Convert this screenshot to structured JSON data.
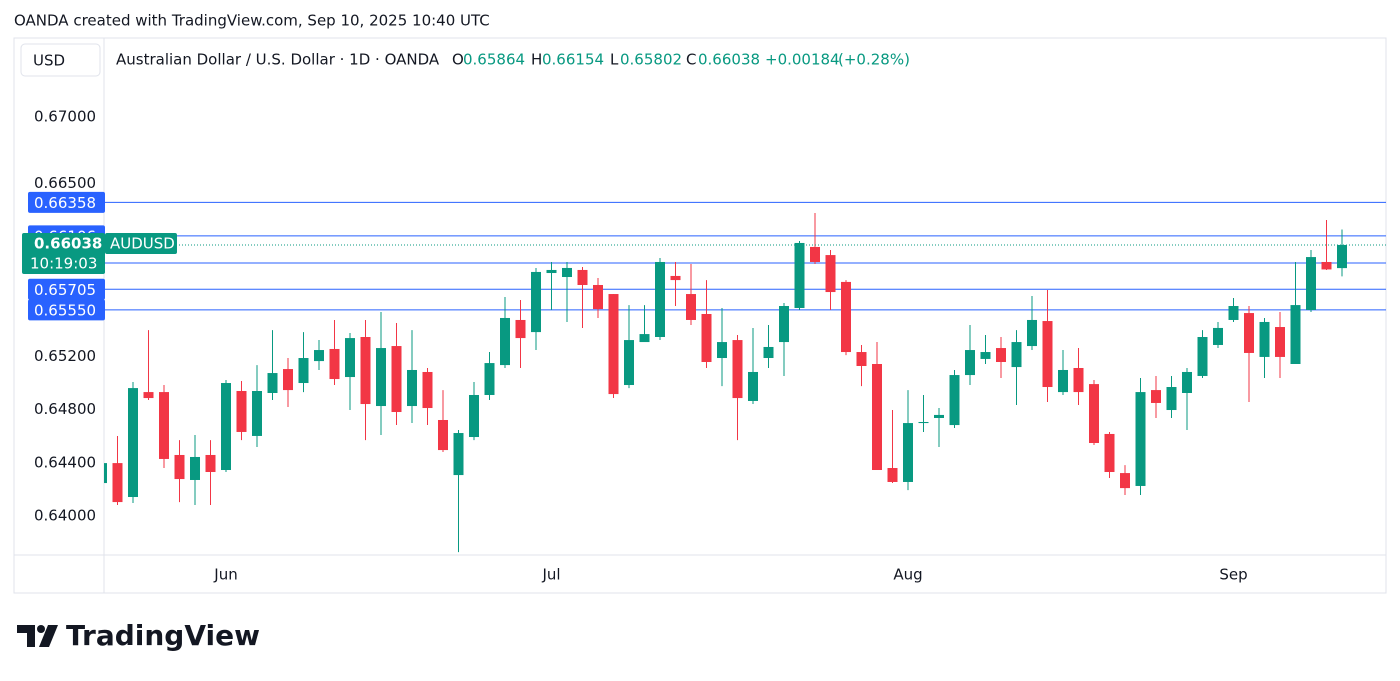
{
  "watermark": "OANDA created with TradingView.com, Sep 10, 2025 10:40 UTC",
  "logo": "TradingView",
  "chart_data": {
    "type": "candlestick",
    "currency": "USD",
    "title": "Australian Dollar / U.S. Dollar · 1D · OANDA",
    "ohlc_labels": [
      "O",
      "H",
      "L",
      "C"
    ],
    "change": "+0.00184",
    "change_pct": "(+0.28%)",
    "symbol": "AUDUSD",
    "countdown": "10:19:03",
    "up_color": "#089981",
    "down_color": "#f23645",
    "categories": [
      null,
      null,
      null,
      null,
      null,
      null,
      null,
      null,
      "Jun",
      null,
      null,
      null,
      null,
      null,
      null,
      null,
      null,
      null,
      null,
      null,
      null,
      null,
      null,
      null,
      null,
      null,
      null,
      null,
      null,
      "Jul",
      null,
      null,
      null,
      null,
      null,
      null,
      null,
      null,
      null,
      null,
      null,
      null,
      null,
      null,
      null,
      null,
      null,
      null,
      null,
      null,
      null,
      null,
      "Aug",
      null,
      null,
      null,
      null,
      null,
      null,
      null,
      null,
      null,
      null,
      null,
      null,
      null,
      null,
      null,
      null,
      null,
      null,
      null,
      null,
      "Sep",
      null,
      null,
      null,
      null,
      null,
      null,
      null
    ],
    "open": [
      0.64248,
      0.64398,
      0.64143,
      0.64932,
      0.64932,
      0.64459,
      0.64271,
      0.64459,
      0.64346,
      0.6494,
      0.64602,
      0.64925,
      0.65105,
      0.65,
      0.65165,
      0.65256,
      0.65045,
      0.65346,
      0.64827,
      0.65278,
      0.64827,
      0.65083,
      0.64722,
      0.64308,
      0.64594,
      0.6491,
      0.65135,
      0.65474,
      0.65383,
      0.65827,
      0.65797,
      0.6585,
      0.65737,
      0.65669,
      0.64985,
      0.65308,
      0.65346,
      0.65805,
      0.65669,
      0.65519,
      0.65188,
      0.65323,
      0.64865,
      0.65188,
      0.65308,
      0.65564,
      0.66023,
      0.65962,
      0.6576,
      0.65233,
      0.65143,
      0.64361,
      0.64256,
      0.64699,
      0.64737,
      0.64684,
      0.6506,
      0.65181,
      0.65263,
      0.6512,
      0.65278,
      0.65466,
      0.64932,
      0.65113,
      0.64992,
      0.64617,
      0.64323,
      0.64226,
      0.64947,
      0.64797,
      0.64925,
      0.65053,
      0.65286,
      0.65474,
      0.65526,
      0.65196,
      0.65421,
      0.65143,
      0.65549,
      0.6591,
      0.65864
    ],
    "high": [
      0.6442,
      0.64602,
      0.65008,
      0.65398,
      0.64985,
      0.64571,
      0.64609,
      0.64571,
      0.65023,
      0.65015,
      0.65135,
      0.65398,
      0.65188,
      0.65383,
      0.65323,
      0.65474,
      0.65376,
      0.65474,
      0.65534,
      0.65451,
      0.65398,
      0.65113,
      0.64947,
      0.64647,
      0.65008,
      0.65233,
      0.65647,
      0.65624,
      0.65865,
      0.6591,
      0.6591,
      0.65872,
      0.6579,
      0.65669,
      0.65586,
      0.65586,
      0.6594,
      0.6591,
      0.65895,
      0.65774,
      0.65564,
      0.65361,
      0.65414,
      0.65436,
      0.65602,
      0.66068,
      0.66278,
      0.66,
      0.65774,
      0.65286,
      0.65308,
      0.64797,
      0.64947,
      0.6491,
      0.64812,
      0.65098,
      0.65436,
      0.65361,
      0.65346,
      0.65398,
      0.65654,
      0.65699,
      0.65248,
      0.65263,
      0.65023,
      0.64632,
      0.64383,
      0.65038,
      0.65053,
      0.65053,
      0.65113,
      0.65398,
      0.65459,
      0.65639,
      0.65579,
      0.65489,
      0.65534,
      0.6591,
      0.66,
      0.66226,
      0.66154
    ],
    "low": [
      0.6423,
      0.64083,
      0.64098,
      0.64872,
      0.64361,
      0.64105,
      0.64083,
      0.64083,
      0.64331,
      0.64571,
      0.64519,
      0.64872,
      0.6482,
      0.64932,
      0.65098,
      0.64985,
      0.64797,
      0.64571,
      0.64609,
      0.64684,
      0.64699,
      0.64684,
      0.64481,
      0.63729,
      0.64571,
      0.64872,
      0.65113,
      0.65113,
      0.65248,
      0.65549,
      0.65459,
      0.65414,
      0.65489,
      0.64887,
      0.64962,
      0.65308,
      0.65323,
      0.65579,
      0.65436,
      0.65113,
      0.64977,
      0.64571,
      0.64842,
      0.65113,
      0.65053,
      0.65549,
      0.65895,
      0.65549,
      0.6521,
      0.64977,
      0.64346,
      0.64248,
      0.64195,
      0.64632,
      0.64519,
      0.64662,
      0.64985,
      0.65143,
      0.65038,
      0.64835,
      0.65248,
      0.64857,
      0.6491,
      0.64835,
      0.64534,
      0.64286,
      0.64158,
      0.64158,
      0.64737,
      0.64737,
      0.64647,
      0.65038,
      0.65263,
      0.65459,
      0.64857,
      0.65038,
      0.65038,
      0.65143,
      0.65534,
      0.6585,
      0.65802
    ],
    "close": [
      0.64398,
      0.64105,
      0.64962,
      0.64887,
      0.64429,
      0.64278,
      0.64444,
      0.64331,
      0.65,
      0.64632,
      0.6494,
      0.65075,
      0.64947,
      0.65188,
      0.65248,
      0.6503,
      0.65338,
      0.64842,
      0.65263,
      0.64782,
      0.65098,
      0.64812,
      0.64496,
      0.64624,
      0.6491,
      0.6515,
      0.65489,
      0.65338,
      0.65835,
      0.6585,
      0.65865,
      0.65737,
      0.65556,
      0.64917,
      0.65323,
      0.65368,
      0.6591,
      0.65774,
      0.65474,
      0.65158,
      0.65308,
      0.64887,
      0.65083,
      0.65271,
      0.65579,
      0.66053,
      0.6591,
      0.65684,
      0.65233,
      0.65128,
      0.64346,
      0.64256,
      0.64699,
      0.64707,
      0.6476,
      0.6506,
      0.65248,
      0.65233,
      0.65158,
      0.65308,
      0.65474,
      0.6497,
      0.65098,
      0.64932,
      0.64549,
      0.64331,
      0.6421,
      0.64932,
      0.6485,
      0.6497,
      0.65083,
      0.65346,
      0.65414,
      0.65579,
      0.65226,
      0.65459,
      0.65196,
      0.65586,
      0.65947,
      0.65854,
      0.66038
    ],
    "ylim": [
      0.63707,
      0.67594
    ],
    "yticks": [
      {
        "value": 0.64,
        "label": "0.64000"
      },
      {
        "value": 0.644,
        "label": "0.64400"
      },
      {
        "value": 0.648,
        "label": "0.64800"
      },
      {
        "value": 0.652,
        "label": "0.65200"
      },
      {
        "value": 0.665,
        "label": "0.66500"
      },
      {
        "value": 0.67,
        "label": "0.67000"
      }
    ],
    "grid": false,
    "levels": {
      "color": "#2962ff",
      "values": [
        0.66358,
        0.66106,
        0.65902,
        0.65705,
        {
          "value": 0.6555,
          "label": "0.65550"
        }
      ]
    }
  }
}
